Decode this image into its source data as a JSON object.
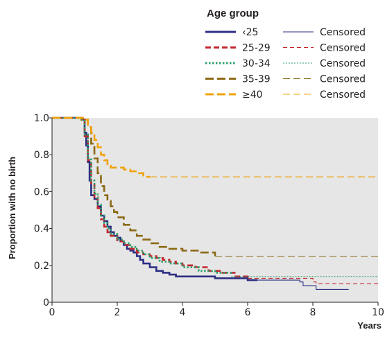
{
  "chart_data": {
    "type": "line",
    "step": true,
    "legend_title": "Age group",
    "legend_placement": "top-right",
    "censored_label": "Censored",
    "xlabel": "Years",
    "ylabel": "Proportion with no birth",
    "xlim": [
      0,
      10
    ],
    "ylim": [
      0,
      1.0
    ],
    "xticks": [
      0,
      2,
      4,
      6,
      8,
      10
    ],
    "yticks": [
      0,
      0.2,
      0.4,
      0.6,
      0.8,
      1.0
    ],
    "ytick_labels": [
      "0",
      "0.2",
      "0.4",
      "0.6",
      "0.8",
      "1.0"
    ],
    "grid": false,
    "background": "#e6e6e6",
    "series": [
      {
        "name": "‹25",
        "color": "#2b2e83",
        "dash": "solid",
        "x": [
          0,
          0.9,
          1.0,
          1.05,
          1.1,
          1.15,
          1.2,
          1.3,
          1.4,
          1.5,
          1.6,
          1.7,
          1.8,
          1.9,
          2.0,
          2.1,
          2.2,
          2.3,
          2.4,
          2.5,
          2.6,
          2.7,
          2.8,
          3.0,
          3.2,
          3.4,
          3.6,
          3.8,
          4.0,
          4.5,
          5.0,
          5.5,
          6.0,
          6.3
        ],
        "y": [
          1.0,
          0.99,
          0.92,
          0.85,
          0.76,
          0.66,
          0.58,
          0.56,
          0.52,
          0.47,
          0.44,
          0.41,
          0.38,
          0.36,
          0.35,
          0.33,
          0.31,
          0.29,
          0.28,
          0.27,
          0.25,
          0.23,
          0.21,
          0.19,
          0.17,
          0.16,
          0.15,
          0.14,
          0.14,
          0.14,
          0.13,
          0.13,
          0.12,
          0.12
        ],
        "censored_tail": {
          "x": [
            6.3,
            7.6,
            7.7,
            8.0,
            8.1,
            9.1
          ],
          "y": [
            0.12,
            0.11,
            0.09,
            0.09,
            0.07,
            0.07
          ]
        }
      },
      {
        "name": "25-29",
        "color": "#c1272d",
        "dash": "short",
        "x": [
          0,
          0.9,
          1.0,
          1.1,
          1.2,
          1.3,
          1.4,
          1.5,
          1.6,
          1.7,
          1.8,
          2.0,
          2.2,
          2.4,
          2.6,
          2.8,
          3.0,
          3.2,
          3.4,
          3.6,
          3.8,
          4.0,
          4.4,
          4.8,
          5.2,
          5.6,
          6.0
        ],
        "y": [
          1.0,
          0.99,
          0.9,
          0.77,
          0.64,
          0.57,
          0.51,
          0.45,
          0.41,
          0.38,
          0.36,
          0.33,
          0.31,
          0.29,
          0.27,
          0.26,
          0.25,
          0.24,
          0.23,
          0.22,
          0.21,
          0.2,
          0.19,
          0.17,
          0.16,
          0.14,
          0.13
        ],
        "censored_tail": {
          "x": [
            6.0,
            8.0,
            8.1,
            10.0
          ],
          "y": [
            0.13,
            0.11,
            0.1,
            0.1
          ]
        }
      },
      {
        "name": "30-34",
        "color": "#2e9e6b",
        "dash": "dotted",
        "x": [
          0,
          0.9,
          1.0,
          1.1,
          1.2,
          1.3,
          1.4,
          1.5,
          1.6,
          1.7,
          1.8,
          2.0,
          2.2,
          2.4,
          2.6,
          2.8,
          3.0,
          3.3,
          3.6,
          4.0,
          4.5,
          5.0,
          5.5
        ],
        "y": [
          1.0,
          0.99,
          0.91,
          0.78,
          0.66,
          0.59,
          0.53,
          0.47,
          0.43,
          0.4,
          0.37,
          0.34,
          0.32,
          0.3,
          0.28,
          0.26,
          0.24,
          0.22,
          0.21,
          0.19,
          0.17,
          0.16,
          0.15
        ],
        "censored_tail": {
          "x": [
            5.5,
            10.0
          ],
          "y": [
            0.14,
            0.14
          ]
        }
      },
      {
        "name": "35-39",
        "color": "#8b6914",
        "dash": "long",
        "x": [
          0,
          0.9,
          1.1,
          1.2,
          1.3,
          1.4,
          1.5,
          1.6,
          1.7,
          1.8,
          1.9,
          2.0,
          2.2,
          2.4,
          2.6,
          2.8,
          3.0,
          3.3,
          3.6,
          4.0,
          4.5,
          5.0
        ],
        "y": [
          1.0,
          0.99,
          0.95,
          0.86,
          0.78,
          0.7,
          0.63,
          0.58,
          0.55,
          0.52,
          0.49,
          0.46,
          0.42,
          0.39,
          0.36,
          0.34,
          0.32,
          0.3,
          0.29,
          0.28,
          0.27,
          0.25
        ],
        "censored_tail": {
          "x": [
            5.0,
            10.0
          ],
          "y": [
            0.25,
            0.25
          ]
        }
      },
      {
        "name": "≥40",
        "color": "#f0a30a",
        "dash": "long",
        "x": [
          0,
          1.0,
          1.1,
          1.2,
          1.3,
          1.4,
          1.5,
          1.6,
          1.7,
          1.8,
          2.0,
          2.2,
          2.4,
          2.6,
          2.8,
          3.0
        ],
        "y": [
          1.0,
          0.99,
          0.95,
          0.92,
          0.88,
          0.84,
          0.8,
          0.77,
          0.74,
          0.73,
          0.73,
          0.72,
          0.71,
          0.7,
          0.68,
          0.68
        ],
        "censored_tail": {
          "x": [
            3.0,
            10.0
          ],
          "y": [
            0.68,
            0.68
          ]
        }
      }
    ]
  }
}
